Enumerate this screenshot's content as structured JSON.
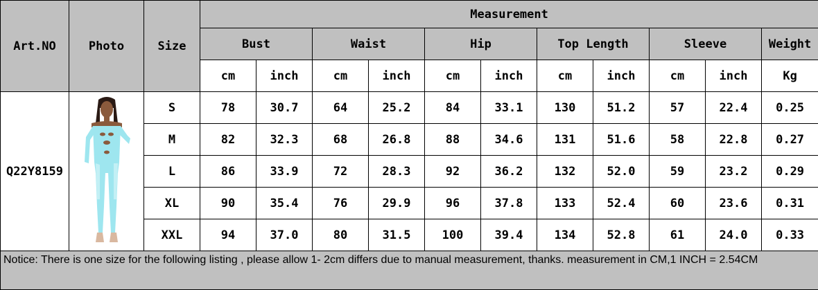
{
  "headers": {
    "art_no": "Art.NO",
    "photo": "Photo",
    "size": "Size",
    "measurement": "Measurement",
    "bust": "Bust",
    "waist": "Waist",
    "hip": "Hip",
    "top_length": "Top Length",
    "sleeve": "Sleeve",
    "weight": "Weight",
    "unit_cm": "cm",
    "unit_inch": "inch",
    "unit_kg": "Kg"
  },
  "product": {
    "art_no": "Q22Y8159",
    "photo_color": "#9ee6ef"
  },
  "rows": [
    {
      "size": "S",
      "bust_cm": "78",
      "bust_in": "30.7",
      "waist_cm": "64",
      "waist_in": "25.2",
      "hip_cm": "84",
      "hip_in": "33.1",
      "len_cm": "130",
      "len_in": "51.2",
      "sleeve_cm": "57",
      "sleeve_in": "22.4",
      "weight": "0.25"
    },
    {
      "size": "M",
      "bust_cm": "82",
      "bust_in": "32.3",
      "waist_cm": "68",
      "waist_in": "26.8",
      "hip_cm": "88",
      "hip_in": "34.6",
      "len_cm": "131",
      "len_in": "51.6",
      "sleeve_cm": "58",
      "sleeve_in": "22.8",
      "weight": "0.27"
    },
    {
      "size": "L",
      "bust_cm": "86",
      "bust_in": "33.9",
      "waist_cm": "72",
      "waist_in": "28.3",
      "hip_cm": "92",
      "hip_in": "36.2",
      "len_cm": "132",
      "len_in": "52.0",
      "sleeve_cm": "59",
      "sleeve_in": "23.2",
      "weight": "0.29"
    },
    {
      "size": "XL",
      "bust_cm": "90",
      "bust_in": "35.4",
      "waist_cm": "76",
      "waist_in": "29.9",
      "hip_cm": "96",
      "hip_in": "37.8",
      "len_cm": "133",
      "len_in": "52.4",
      "sleeve_cm": "60",
      "sleeve_in": "23.6",
      "weight": "0.31"
    },
    {
      "size": "XXL",
      "bust_cm": "94",
      "bust_in": "37.0",
      "waist_cm": "80",
      "waist_in": "31.5",
      "hip_cm": "100",
      "hip_in": "39.4",
      "len_cm": "134",
      "len_in": "52.8",
      "sleeve_cm": "61",
      "sleeve_in": "24.0",
      "weight": "0.33"
    }
  ],
  "notice": "Notice: There is one size for the following listing , please allow 1- 2cm differs due to manual measurement, thanks.  measurement in CM,1 INCH = 2.54CM"
}
